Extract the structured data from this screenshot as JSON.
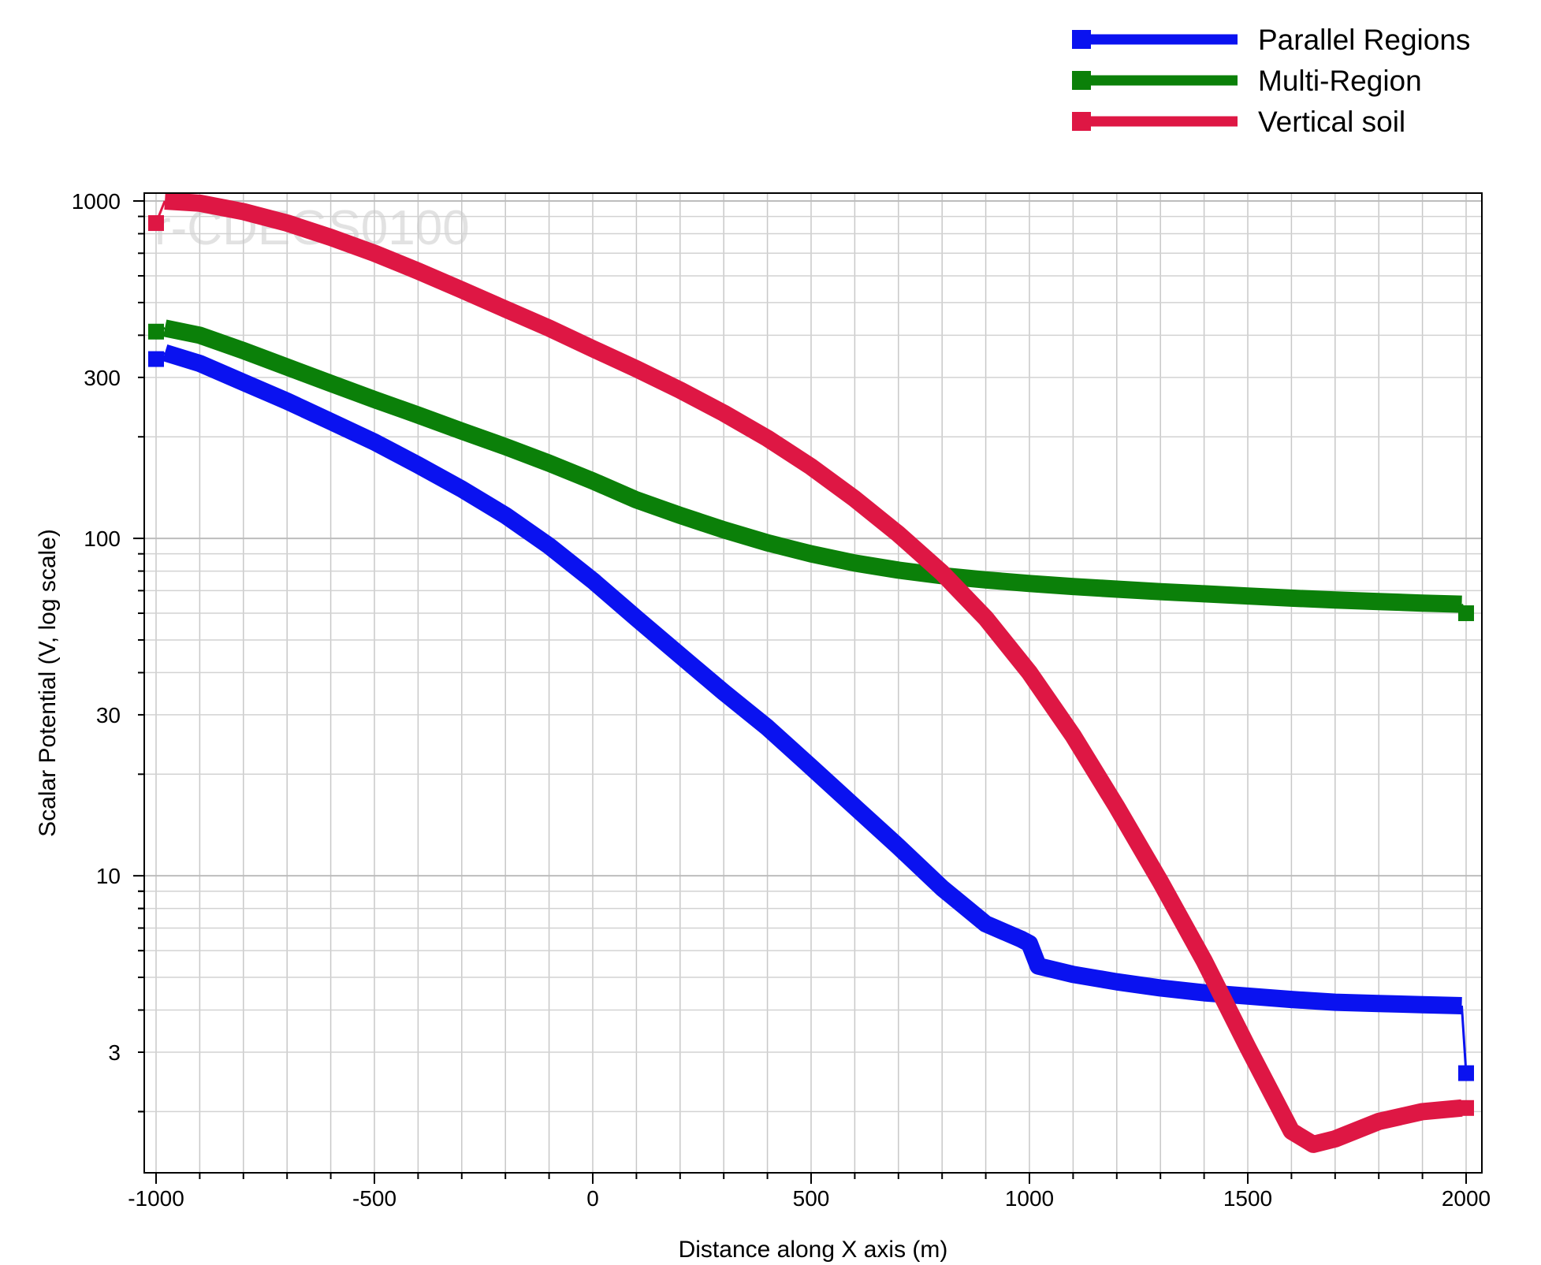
{
  "chart_data": {
    "type": "line",
    "title": "",
    "watermark": "r-CDEGS0100",
    "xlabel": "Distance along X axis (m)",
    "ylabel": "Scalar Potential (V, log scale)",
    "xlim": [
      -1000,
      2000
    ],
    "ylim": [
      1.5,
      1000
    ],
    "yscale": "log",
    "xticks": [
      -1000,
      -500,
      0,
      500,
      1000,
      1500,
      2000
    ],
    "xtick_labels": [
      "-1000",
      "-500",
      "0",
      "500",
      "1000",
      "1500",
      "2000"
    ],
    "yticks": [
      3,
      10,
      30,
      100,
      300,
      1000
    ],
    "ytick_labels": [
      "3",
      "10",
      "30",
      "100",
      "300",
      "1000"
    ],
    "grid": true,
    "legend_position": "top-right",
    "series": [
      {
        "name": "Parallel Regions",
        "color": "#0a12f0",
        "x": [
          -1000,
          -980,
          -900,
          -800,
          -700,
          -600,
          -500,
          -400,
          -300,
          -200,
          -100,
          0,
          100,
          200,
          300,
          400,
          500,
          600,
          700,
          800,
          900,
          980,
          1000,
          1020,
          1100,
          1200,
          1300,
          1400,
          1500,
          1600,
          1700,
          1800,
          1900,
          1990,
          2000
        ],
        "y": [
          340,
          355,
          330,
          290,
          255,
          222,
          193,
          165,
          140,
          117,
          95,
          75,
          58,
          45,
          35,
          27.5,
          21,
          16,
          12.2,
          9.2,
          7.2,
          6.5,
          6.3,
          5.4,
          5.1,
          4.85,
          4.65,
          4.5,
          4.4,
          4.3,
          4.22,
          4.18,
          4.15,
          4.12,
          2.6
        ]
      },
      {
        "name": "Multi-Region",
        "color": "#0b8009",
        "x": [
          -1000,
          -980,
          -900,
          -800,
          -700,
          -600,
          -500,
          -400,
          -300,
          -200,
          -100,
          0,
          100,
          200,
          300,
          400,
          500,
          600,
          700,
          800,
          900,
          1000,
          1100,
          1200,
          1300,
          1400,
          1500,
          1600,
          1700,
          1800,
          1900,
          1990,
          2000
        ],
        "y": [
          410,
          420,
          400,
          360,
          322,
          288,
          258,
          232,
          208,
          187,
          167,
          148,
          130,
          117,
          106,
          97,
          90,
          84.5,
          80.5,
          77.5,
          75.3,
          73.5,
          72,
          70.7,
          69.5,
          68.5,
          67.5,
          66.5,
          65.7,
          65,
          64.3,
          63.8,
          60
        ]
      },
      {
        "name": "Vertical soil",
        "color": "#de1744",
        "x": [
          -1000,
          -980,
          -900,
          -800,
          -700,
          -600,
          -500,
          -400,
          -300,
          -200,
          -100,
          0,
          100,
          200,
          300,
          400,
          500,
          600,
          700,
          800,
          900,
          1000,
          1100,
          1200,
          1300,
          1400,
          1500,
          1600,
          1650,
          1700,
          1800,
          1900,
          1990,
          2000
        ],
        "y": [
          860,
          1000,
          985,
          930,
          860,
          780,
          700,
          620,
          545,
          478,
          420,
          365,
          318,
          275,
          235,
          198,
          163,
          131,
          103,
          79,
          58,
          40,
          26,
          16,
          9.6,
          5.6,
          3.1,
          1.75,
          1.6,
          1.66,
          1.87,
          2.0,
          2.05,
          2.05
        ]
      }
    ]
  }
}
